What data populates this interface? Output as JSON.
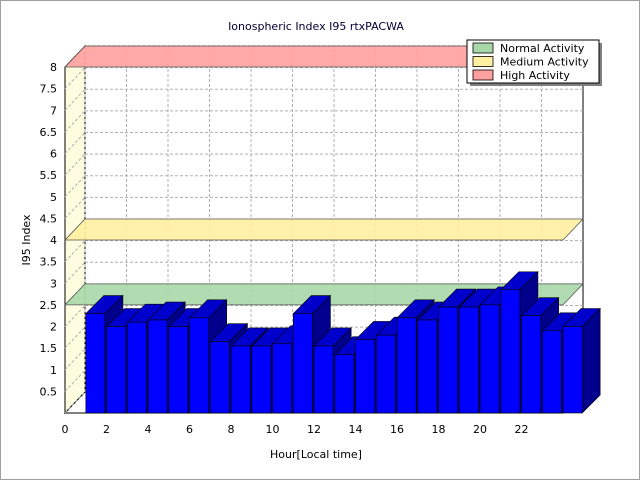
{
  "chart_data": {
    "type": "bar",
    "title": "Ionospheric Index I95 rtxPACWA",
    "xlabel": "Hour[Local time]",
    "ylabel": "I95 Index",
    "ylim": [
      0,
      8
    ],
    "yticks": [
      "0.5",
      "1",
      "1.5",
      "2",
      "2.5",
      "3",
      "3.5",
      "4",
      "4.5",
      "5",
      "5.5",
      "6",
      "6.5",
      "7",
      "7.5",
      "8"
    ],
    "xticks": [
      "0",
      "2",
      "4",
      "6",
      "8",
      "10",
      "12",
      "14",
      "16",
      "18",
      "20",
      "22"
    ],
    "hours": [
      0,
      1,
      2,
      3,
      4,
      5,
      6,
      7,
      8,
      9,
      10,
      11,
      12,
      13,
      14,
      15,
      16,
      17,
      18,
      19,
      20,
      21,
      22,
      23
    ],
    "values": [
      2.3,
      2.0,
      2.1,
      2.15,
      2.0,
      2.2,
      1.65,
      1.55,
      1.55,
      1.6,
      2.3,
      1.55,
      1.35,
      1.7,
      1.8,
      2.2,
      2.15,
      2.45,
      2.45,
      2.5,
      2.85,
      2.25,
      1.9,
      2.0
    ],
    "grid": true,
    "legend_position": "top-right",
    "bands": [
      {
        "name": "Normal Activity",
        "value": 2.5,
        "color": "#a8d8a8"
      },
      {
        "name": "Medium Activity",
        "value": 4.0,
        "color": "#fff0a0"
      },
      {
        "name": "High Activity",
        "value": 8.0,
        "color": "#ffa0a0"
      }
    ],
    "bar_color": "#0000ff",
    "wall_color": "#fffde0"
  }
}
